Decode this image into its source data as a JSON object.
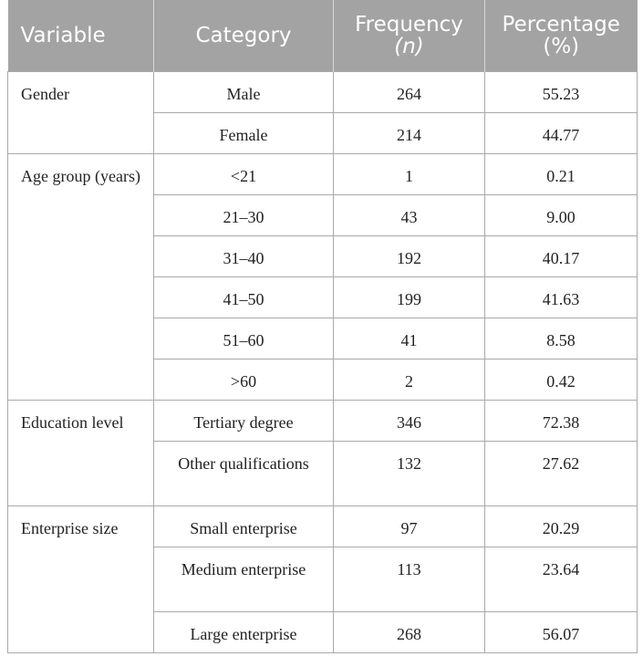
{
  "headers": {
    "variable": "Variable",
    "category": "Category",
    "frequency": "Frequency",
    "frequency_unit": "(n)",
    "percentage": "Percentage",
    "percentage_unit": "(%)"
  },
  "groups": [
    {
      "variable": "Gender",
      "rows": [
        {
          "category": "Male",
          "n": "264",
          "pct": "55.23"
        },
        {
          "category": "Female",
          "n": "214",
          "pct": "44.77"
        }
      ]
    },
    {
      "variable": "Age group (years)",
      "rows": [
        {
          "category": "<21",
          "n": "1",
          "pct": "0.21"
        },
        {
          "category": "21–30",
          "n": "43",
          "pct": "9.00"
        },
        {
          "category": "31–40",
          "n": "192",
          "pct": "40.17"
        },
        {
          "category": "41–50",
          "n": "199",
          "pct": "41.63"
        },
        {
          "category": "51–60",
          "n": "41",
          "pct": "8.58"
        },
        {
          "category": ">60",
          "n": "2",
          "pct": "0.42"
        }
      ]
    },
    {
      "variable": "Education level",
      "rows": [
        {
          "category": "Tertiary degree",
          "n": "346",
          "pct": "72.38"
        },
        {
          "category": "Other qualifications",
          "n": "132",
          "pct": "27.62"
        }
      ]
    },
    {
      "variable": "Enterprise size",
      "rows": [
        {
          "category": "Small enterprise",
          "n": "97",
          "pct": "20.29"
        },
        {
          "category": "Medium enterprise",
          "n": "113",
          "pct": "23.64"
        },
        {
          "category": "Large enterprise",
          "n": "268",
          "pct": "56.07"
        }
      ]
    }
  ]
}
